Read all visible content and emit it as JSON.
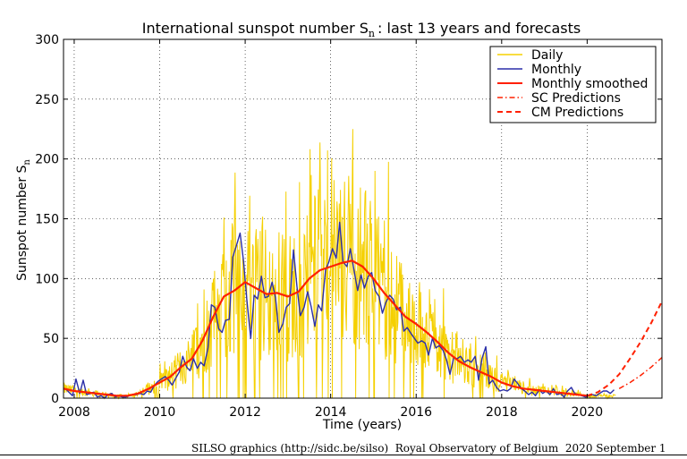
{
  "chart_data": {
    "type": "line",
    "title_main": "International sunspot number S",
    "title_sub": "n",
    "title_rest": ": last 13 years and forecasts",
    "ylabel_main": "Sunspot number S",
    "ylabel_sub": "n",
    "xlabel": "Time (years)",
    "xlim": [
      2007.75,
      2021.75
    ],
    "ylim": [
      0,
      300
    ],
    "x_ticks": [
      2008,
      2010,
      2012,
      2014,
      2016,
      2018,
      2020
    ],
    "x_tick_labels": [
      "2008",
      "2010",
      "2012",
      "2014",
      "2016",
      "2018",
      "2020"
    ],
    "y_ticks": [
      0,
      50,
      100,
      150,
      200,
      250,
      300
    ],
    "y_tick_labels": [
      "0",
      "50",
      "100",
      "150",
      "200",
      "250",
      "300"
    ],
    "grid": true,
    "legend_position": "top-right",
    "legend": [
      {
        "label": "Daily",
        "color": "#f5d000",
        "style": "solid"
      },
      {
        "label": "Monthly",
        "color": "#2b2fa8",
        "style": "solid"
      },
      {
        "label": "Monthly smoothed",
        "color": "#ff2000",
        "style": "solid"
      },
      {
        "label": "SC Predictions",
        "color": "#ff2000",
        "style": "dashdot"
      },
      {
        "label": "CM Predictions",
        "color": "#ff2000",
        "style": "dashed"
      }
    ],
    "series": [
      {
        "name": "Monthly smoothed",
        "color": "#ff2000",
        "x": [
          2007.75,
          2008.0,
          2008.25,
          2008.5,
          2008.75,
          2009.0,
          2009.25,
          2009.5,
          2009.75,
          2010.0,
          2010.25,
          2010.5,
          2010.75,
          2011.0,
          2011.25,
          2011.5,
          2011.75,
          2012.0,
          2012.25,
          2012.5,
          2012.75,
          2013.0,
          2013.25,
          2013.5,
          2013.75,
          2014.0,
          2014.25,
          2014.5,
          2014.75,
          2015.0,
          2015.25,
          2015.5,
          2015.75,
          2016.0,
          2016.25,
          2016.5,
          2016.75,
          2017.0,
          2017.25,
          2017.5,
          2017.75,
          2018.0,
          2018.25,
          2018.5,
          2018.75,
          2019.0,
          2019.25,
          2019.5,
          2019.75,
          2020.0
        ],
        "y": [
          8,
          6,
          5,
          4,
          3,
          2,
          2,
          4,
          8,
          13,
          18,
          26,
          33,
          48,
          68,
          85,
          90,
          97,
          92,
          87,
          88,
          85,
          89,
          100,
          107,
          110,
          113,
          115,
          110,
          100,
          88,
          78,
          68,
          62,
          55,
          47,
          38,
          31,
          26,
          22,
          18,
          13,
          10,
          8,
          7,
          6,
          5,
          4,
          3,
          2
        ]
      },
      {
        "name": "Monthly",
        "color": "#2b2fa8",
        "x": [
          2007.79,
          2007.96,
          2008.04,
          2008.13,
          2008.21,
          2008.29,
          2008.38,
          2008.46,
          2008.54,
          2008.63,
          2008.71,
          2008.79,
          2008.88,
          2008.96,
          2009.04,
          2009.13,
          2009.21,
          2009.29,
          2009.38,
          2009.46,
          2009.54,
          2009.63,
          2009.71,
          2009.79,
          2009.88,
          2009.96,
          2010.04,
          2010.13,
          2010.21,
          2010.29,
          2010.38,
          2010.46,
          2010.54,
          2010.63,
          2010.71,
          2010.79,
          2010.88,
          2010.96,
          2011.04,
          2011.13,
          2011.21,
          2011.29,
          2011.38,
          2011.46,
          2011.54,
          2011.63,
          2011.71,
          2011.79,
          2011.88,
          2011.96,
          2012.04,
          2012.13,
          2012.21,
          2012.29,
          2012.38,
          2012.46,
          2012.54,
          2012.63,
          2012.71,
          2012.79,
          2012.88,
          2012.96,
          2013.04,
          2013.13,
          2013.21,
          2013.29,
          2013.38,
          2013.46,
          2013.54,
          2013.63,
          2013.71,
          2013.79,
          2013.88,
          2013.96,
          2014.04,
          2014.13,
          2014.21,
          2014.29,
          2014.38,
          2014.46,
          2014.54,
          2014.63,
          2014.71,
          2014.79,
          2014.88,
          2014.96,
          2015.04,
          2015.13,
          2015.21,
          2015.29,
          2015.38,
          2015.46,
          2015.54,
          2015.63,
          2015.71,
          2015.79,
          2015.88,
          2015.96,
          2016.04,
          2016.13,
          2016.21,
          2016.29,
          2016.38,
          2016.46,
          2016.54,
          2016.63,
          2016.71,
          2016.79,
          2016.88,
          2016.96,
          2017.04,
          2017.13,
          2017.21,
          2017.29,
          2017.38,
          2017.46,
          2017.54,
          2017.63,
          2017.71,
          2017.79,
          2017.88,
          2017.96,
          2018.04,
          2018.13,
          2018.21,
          2018.29,
          2018.38,
          2018.46,
          2018.54,
          2018.63,
          2018.71,
          2018.79,
          2018.88,
          2018.96,
          2019.04,
          2019.13,
          2019.21,
          2019.29,
          2019.38,
          2019.46,
          2019.54,
          2019.63,
          2019.71,
          2019.79,
          2019.88,
          2019.96,
          2020.04,
          2020.13,
          2020.21,
          2020.29,
          2020.38,
          2020.46,
          2020.54,
          2020.63
        ],
        "y": [
          8,
          2,
          16,
          4,
          15,
          3,
          4,
          5,
          1,
          2,
          0,
          3,
          4,
          1,
          2,
          1,
          1,
          2,
          3,
          3,
          4,
          3,
          6,
          5,
          11,
          14,
          16,
          18,
          15,
          11,
          17,
          22,
          35,
          26,
          23,
          33,
          25,
          30,
          27,
          42,
          78,
          76,
          58,
          55,
          65,
          66,
          118,
          127,
          138,
          115,
          82,
          50,
          86,
          83,
          102,
          84,
          85,
          97,
          84,
          55,
          62,
          76,
          79,
          124,
          94,
          69,
          76,
          89,
          77,
          60,
          78,
          73,
          107,
          114,
          125,
          117,
          147,
          114,
          110,
          125,
          108,
          90,
          103,
          92,
          102,
          105,
          90,
          85,
          71,
          80,
          86,
          83,
          74,
          76,
          56,
          59,
          54,
          50,
          46,
          48,
          46,
          36,
          50,
          42,
          44,
          40,
          32,
          20,
          34,
          33,
          35,
          30,
          32,
          30,
          35,
          15,
          33,
          43,
          12,
          15,
          9,
          6,
          7,
          6,
          8,
          16,
          12,
          8,
          6,
          3,
          5,
          2,
          7,
          4,
          6,
          3,
          8,
          3,
          4,
          1,
          6,
          9,
          4,
          3,
          2,
          1,
          2,
          3,
          2,
          4,
          6,
          6,
          4,
          7
        ]
      },
      {
        "name": "SC Predictions",
        "color": "#ff2000",
        "x": [
          2020.75,
          2021.0,
          2021.25,
          2021.5,
          2021.75
        ],
        "y": [
          8,
          13,
          19,
          26,
          34
        ]
      },
      {
        "name": "CM Predictions",
        "color": "#ff2000",
        "x": [
          2020.0,
          2020.25,
          2020.5,
          2020.75,
          2021.0,
          2021.25,
          2021.5,
          2021.75
        ],
        "y": [
          2,
          5,
          11,
          20,
          33,
          47,
          63,
          81
        ]
      }
    ]
  },
  "footer": {
    "text": "SILSO graphics (http://sidc.be/silso)  Royal Observatory of Belgium  2020 September 1"
  }
}
